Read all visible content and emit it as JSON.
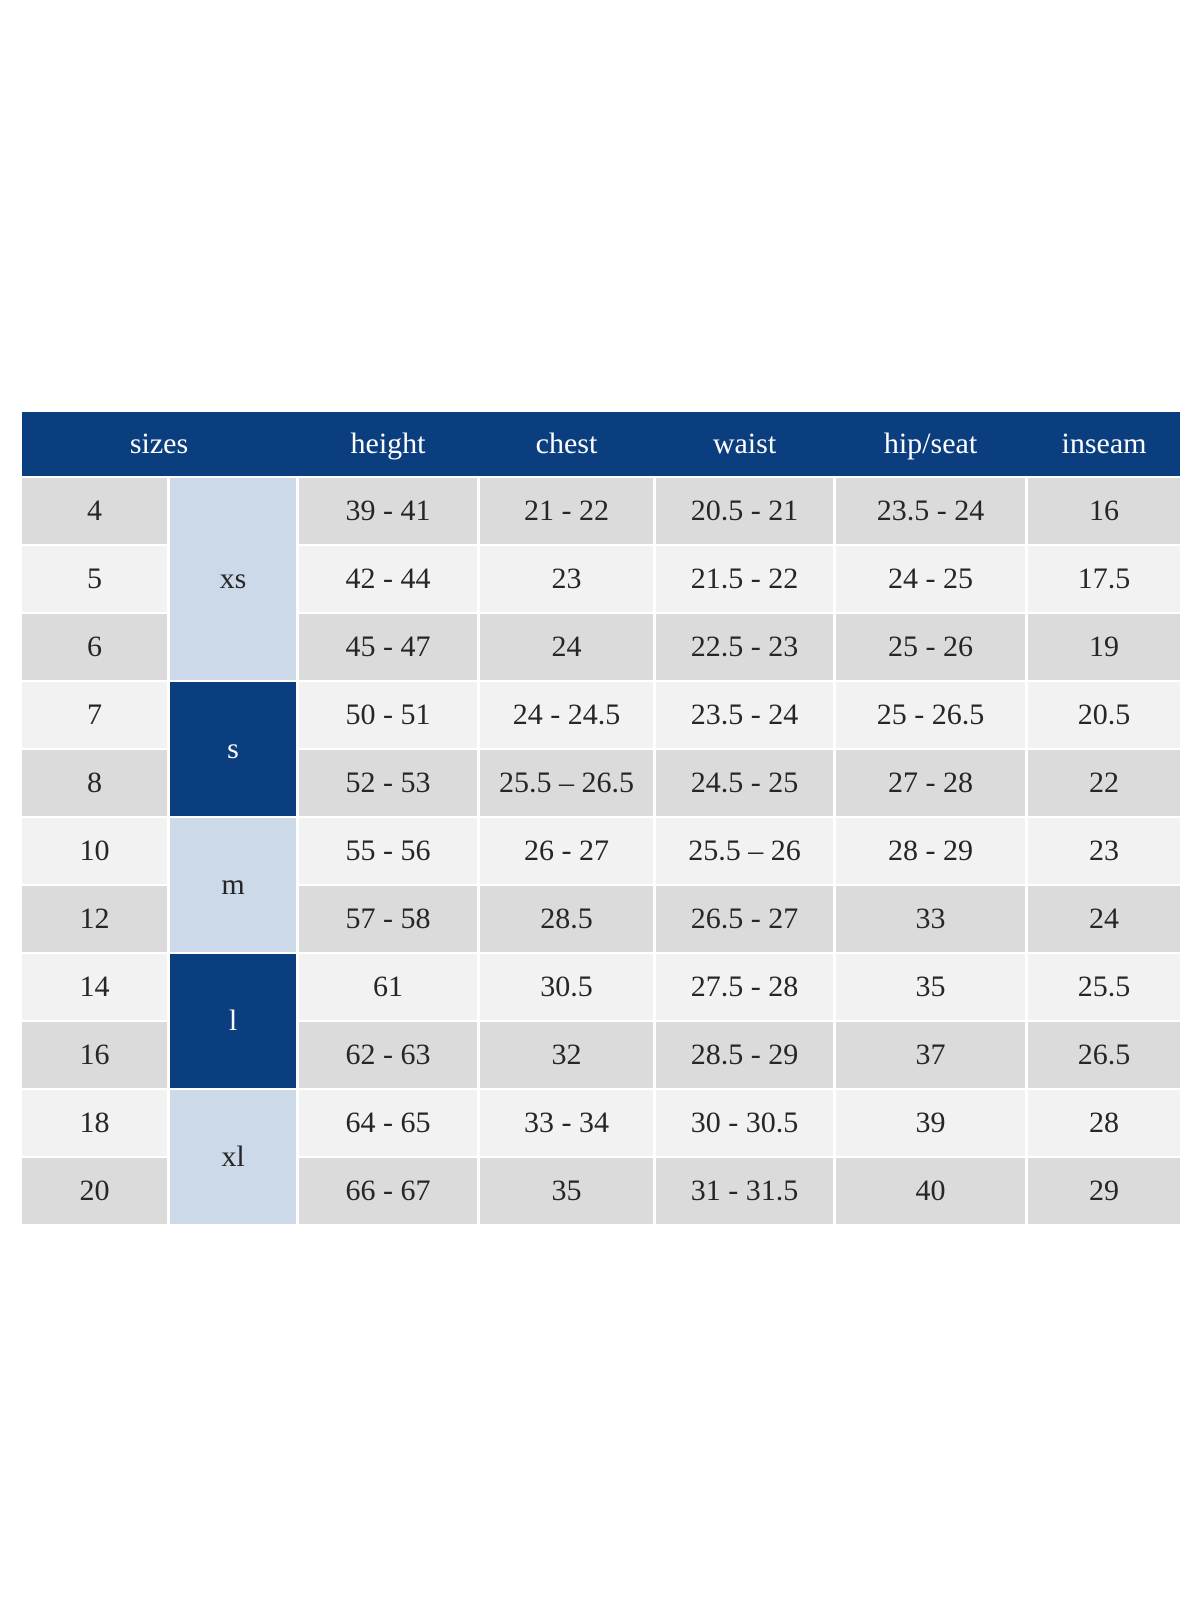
{
  "colors": {
    "header_bg": "#0b3e7f",
    "header_text": "#fdfdfd",
    "group_light_bg": "#ccd9e8",
    "group_dark_bg": "#0b3e7f",
    "row_dark_bg": "#dbdbdb",
    "row_light_bg": "#f2f2f2",
    "cell_text": "#262626",
    "page_bg": "#ffffff"
  },
  "chart_data": {
    "type": "table",
    "columns": [
      "sizes",
      "height",
      "chest",
      "waist",
      "hip/seat",
      "inseam"
    ],
    "layout": {
      "grid": "row-striped",
      "merged_size_group_column": true,
      "legend_position": "none"
    },
    "size_groups": [
      {
        "label": "xs",
        "sizes": [
          "4",
          "5",
          "6"
        ],
        "variant": "light"
      },
      {
        "label": "s",
        "sizes": [
          "7",
          "8"
        ],
        "variant": "dark"
      },
      {
        "label": "m",
        "sizes": [
          "10",
          "12"
        ],
        "variant": "light"
      },
      {
        "label": "l",
        "sizes": [
          "14",
          "16"
        ],
        "variant": "dark"
      },
      {
        "label": "xl",
        "sizes": [
          "18",
          "20"
        ],
        "variant": "light"
      }
    ],
    "rows": [
      {
        "size": "4",
        "group": "xs",
        "height": "39 - 41",
        "chest": "21 - 22",
        "waist": "20.5 - 21",
        "hip_seat": "23.5 - 24",
        "inseam": "16"
      },
      {
        "size": "5",
        "group": "xs",
        "height": "42 - 44",
        "chest": "23",
        "waist": "21.5 - 22",
        "hip_seat": "24 - 25",
        "inseam": "17.5"
      },
      {
        "size": "6",
        "group": "xs",
        "height": "45 - 47",
        "chest": "24",
        "waist": "22.5 - 23",
        "hip_seat": "25 - 26",
        "inseam": "19"
      },
      {
        "size": "7",
        "group": "s",
        "height": "50 - 51",
        "chest": "24 - 24.5",
        "waist": "23.5 - 24",
        "hip_seat": "25 - 26.5",
        "inseam": "20.5"
      },
      {
        "size": "8",
        "group": "s",
        "height": "52 - 53",
        "chest": "25.5 – 26.5",
        "waist": "24.5 - 25",
        "hip_seat": "27 - 28",
        "inseam": "22"
      },
      {
        "size": "10",
        "group": "m",
        "height": "55 - 56",
        "chest": "26 - 27",
        "waist": "25.5 – 26",
        "hip_seat": "28 - 29",
        "inseam": "23"
      },
      {
        "size": "12",
        "group": "m",
        "height": "57 - 58",
        "chest": "28.5",
        "waist": "26.5 - 27",
        "hip_seat": "33",
        "inseam": "24"
      },
      {
        "size": "14",
        "group": "l",
        "height": "61",
        "chest": "30.5",
        "waist": "27.5 - 28",
        "hip_seat": "35",
        "inseam": "25.5"
      },
      {
        "size": "16",
        "group": "l",
        "height": "62 - 63",
        "chest": "32",
        "waist": "28.5 - 29",
        "hip_seat": "37",
        "inseam": "26.5"
      },
      {
        "size": "18",
        "group": "xl",
        "height": "64 - 65",
        "chest": "33 - 34",
        "waist": "30 - 30.5",
        "hip_seat": "39",
        "inseam": "28"
      },
      {
        "size": "20",
        "group": "xl",
        "height": "66 - 67",
        "chest": "35",
        "waist": "31 - 31.5",
        "hip_seat": "40",
        "inseam": "29"
      }
    ]
  }
}
